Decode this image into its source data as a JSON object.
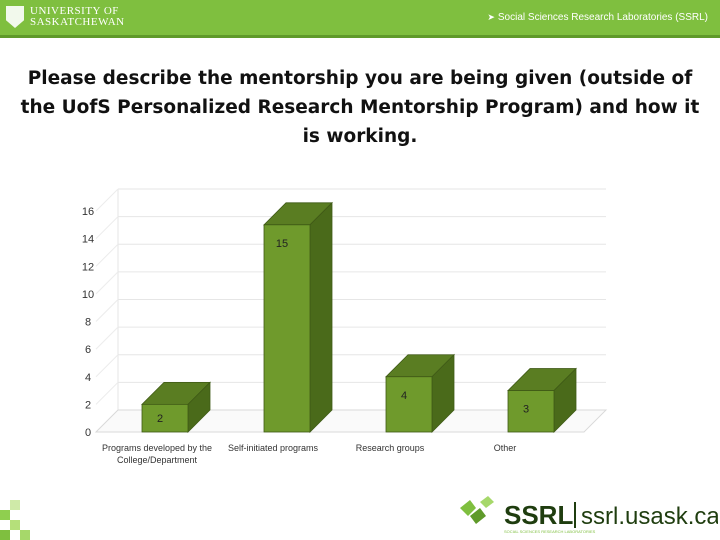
{
  "header": {
    "university_line1": "UNIVERSITY OF",
    "university_line2": "SASKATCHEWAN",
    "lab_name": "Social Sciences Research Laboratories (SSRL)"
  },
  "title": "Please describe the mentorship you are being given (outside of the UofS Personalized Research Mentorship Program) and how it is working.",
  "chart_data": {
    "type": "bar",
    "style": "3d",
    "categories": [
      "Programs developed by the College/Department",
      "Self-initiated programs",
      "Research groups",
      "Other"
    ],
    "values": [
      2,
      15,
      4,
      3
    ],
    "ylim": [
      0,
      16
    ],
    "yticks": [
      0,
      2,
      4,
      6,
      8,
      10,
      12,
      14,
      16
    ],
    "data_labels": [
      "2",
      "15",
      "4",
      "3"
    ],
    "grid": true,
    "bar_color": "#6f9a2c"
  },
  "footer": {
    "brand": "SSRL",
    "url": "ssrl.usask.ca",
    "tagline": "SOCIAL SCIENCES RESEARCH LABORATORIES"
  }
}
